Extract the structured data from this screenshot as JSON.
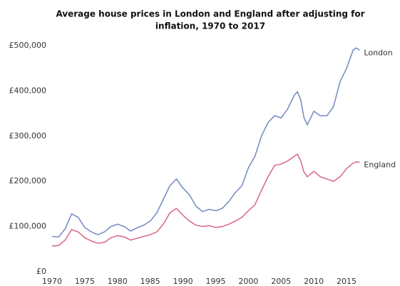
{
  "chart_data": {
    "type": "line",
    "title": [
      "Average house prices in London and England after adjusting for",
      "inflation, 1970  to 2017"
    ],
    "x": [
      1970,
      1971,
      1972,
      1973,
      1974,
      1975,
      1976,
      1977,
      1978,
      1979,
      1980,
      1981,
      1982,
      1983,
      1984,
      1985,
      1986,
      1987,
      1988,
      1989,
      1990,
      1991,
      1992,
      1993,
      1994,
      1995,
      1996,
      1997,
      1998,
      1999,
      2000,
      2001,
      2002,
      2003,
      2004,
      2005,
      2006,
      2007,
      2007.5,
      2008,
      2008.5,
      2009,
      2010,
      2011,
      2012,
      2013,
      2014,
      2015,
      2016,
      2016.5,
      2017
    ],
    "series": [
      {
        "name": "London",
        "color": "#7b8fc6",
        "values": [
          78000,
          77000,
          95000,
          128000,
          120000,
          98000,
          88000,
          82000,
          88000,
          100000,
          105000,
          100000,
          90000,
          97000,
          103000,
          112000,
          130000,
          160000,
          190000,
          205000,
          185000,
          170000,
          145000,
          133000,
          138000,
          135000,
          140000,
          155000,
          175000,
          190000,
          230000,
          255000,
          300000,
          330000,
          345000,
          340000,
          360000,
          390000,
          398000,
          380000,
          340000,
          325000,
          355000,
          345000,
          345000,
          365000,
          420000,
          450000,
          490000,
          495000,
          490000
        ]
      },
      {
        "name": "England",
        "color": "#d9708a",
        "values": [
          57000,
          58000,
          70000,
          93000,
          88000,
          75000,
          68000,
          63000,
          65000,
          75000,
          80000,
          77000,
          70000,
          74000,
          78000,
          82000,
          88000,
          105000,
          130000,
          140000,
          125000,
          112000,
          103000,
          100000,
          102000,
          98000,
          100000,
          105000,
          112000,
          120000,
          135000,
          148000,
          180000,
          210000,
          235000,
          238000,
          245000,
          255000,
          260000,
          245000,
          220000,
          210000,
          222000,
          210000,
          205000,
          200000,
          210000,
          228000,
          240000,
          243000,
          242000
        ]
      }
    ],
    "xlim": [
      1970,
      2017.5
    ],
    "xticks": [
      1970,
      1975,
      1980,
      1985,
      1990,
      1995,
      2000,
      2005,
      2010,
      2015
    ],
    "ylim": [
      0,
      500000
    ],
    "yticks": [
      {
        "value": 0,
        "label": "£0"
      },
      {
        "value": 100000,
        "label": "£100,000"
      },
      {
        "value": 200000,
        "label": "£200,000"
      },
      {
        "value": 300000,
        "label": "£300,000"
      },
      {
        "value": 400000,
        "label": "£400,000"
      },
      {
        "value": 500000,
        "label": "£500,000"
      }
    ],
    "grid": false
  }
}
